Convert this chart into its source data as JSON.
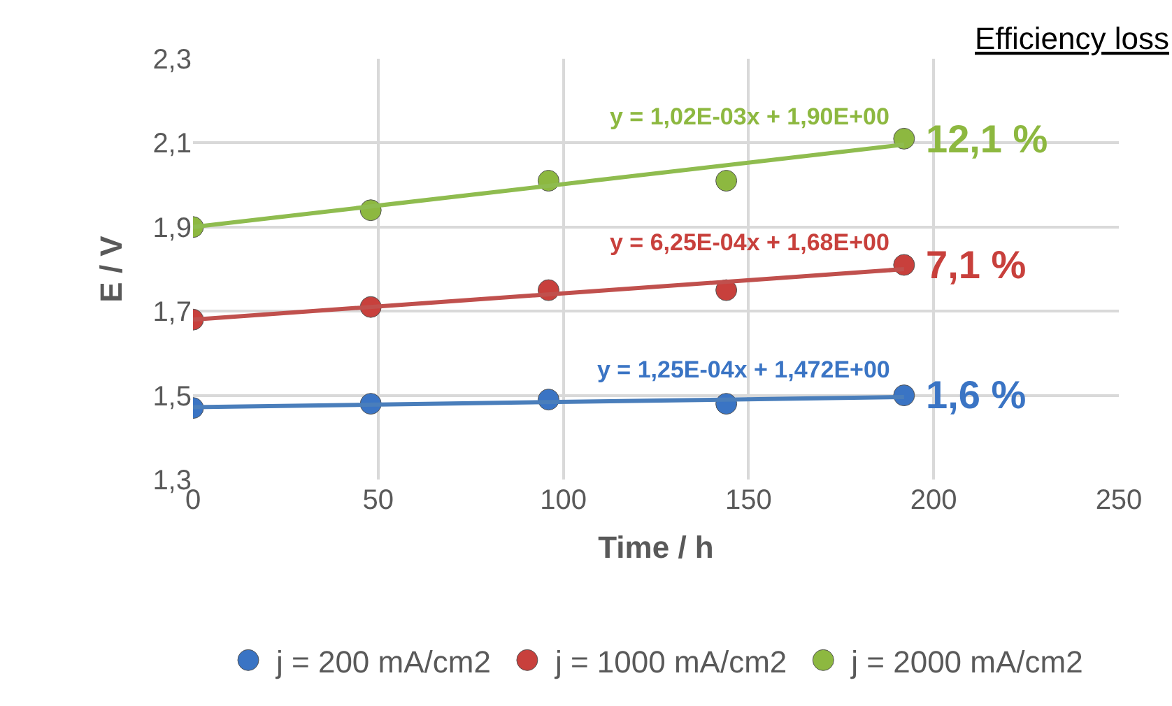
{
  "chart_data": {
    "type": "scatter",
    "xlabel": "Time / h",
    "ylabel": "E / V",
    "xlim": [
      0,
      250
    ],
    "xticks": [
      0,
      50,
      100,
      150,
      200,
      250
    ],
    "ylim": [
      1.3,
      2.3
    ],
    "yticks": [
      {
        "value": 1.3,
        "label": "1,3"
      },
      {
        "value": 1.5,
        "label": "1,5"
      },
      {
        "value": 1.7,
        "label": "1,7"
      },
      {
        "value": 1.9,
        "label": "1,9"
      },
      {
        "value": 2.1,
        "label": "2,1"
      },
      {
        "value": 2.3,
        "label": "2,3"
      }
    ],
    "grid": true,
    "legend": "bottom",
    "marker": "circle",
    "series": [
      {
        "name": "j = 200 mA/cm2",
        "color": "#3a74c4",
        "x": [
          0,
          48,
          96,
          144,
          192
        ],
        "values": [
          1.47,
          1.48,
          1.49,
          1.48,
          1.5
        ]
      },
      {
        "name": "j = 1000 mA/cm2",
        "color": "#c8403c",
        "x": [
          0,
          48,
          96,
          144,
          192
        ],
        "values": [
          1.68,
          1.71,
          1.75,
          1.75,
          1.81
        ]
      },
      {
        "name": "j = 2000 mA/cm2",
        "color": "#8db840",
        "x": [
          0,
          48,
          96,
          144,
          192
        ],
        "values": [
          1.9,
          1.94,
          2.01,
          2.01,
          2.11
        ]
      },
      {
        "type": "line",
        "marker": "none",
        "color": "#4a7ebb",
        "x": [
          0,
          192
        ],
        "values": [
          1.472,
          1.496
        ]
      },
      {
        "type": "line",
        "marker": "none",
        "color": "#c0504d",
        "x": [
          0,
          192
        ],
        "values": [
          1.68,
          1.8
        ]
      },
      {
        "type": "line",
        "marker": "none",
        "color": "#8fbc4f",
        "x": [
          0,
          192
        ],
        "values": [
          1.9,
          2.096
        ]
      }
    ],
    "annotations": [
      "y = 1,25E-04x + 1,472E+00",
      "y = 6,25E-04x + 1,68E+00",
      "y = 1,02E-03x + 1,90E+00",
      "1,6 %",
      "7,1 %",
      "12,1 %",
      "Efficiency loss"
    ]
  }
}
